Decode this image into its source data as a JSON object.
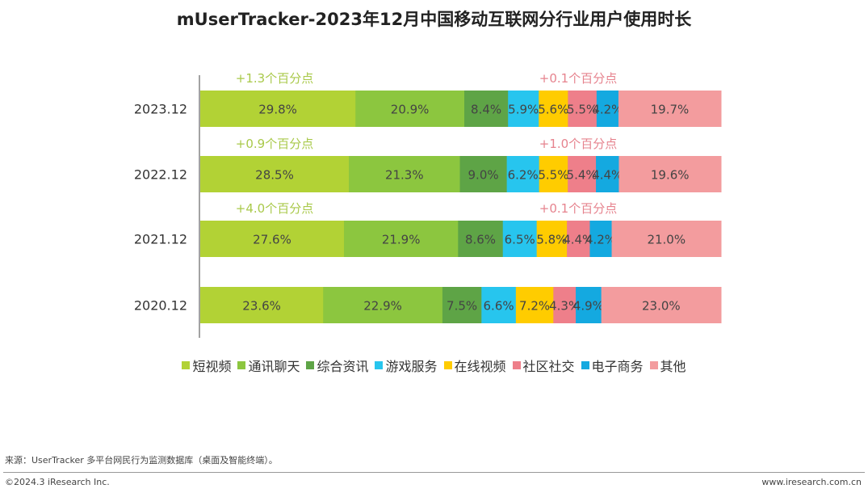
{
  "chart_data": {
    "type": "bar",
    "orientation": "horizontal-stacked-100",
    "title": "mUserTracker-2023年12月中国移动互联网分行业用户使用时长",
    "categories": [
      "2023.12",
      "2022.12",
      "2021.12",
      "2020.12"
    ],
    "series": [
      {
        "name": "短视频",
        "color": "#b2d235",
        "values": [
          29.8,
          28.5,
          27.6,
          23.6
        ]
      },
      {
        "name": "通讯聊天",
        "color": "#8cc63f",
        "values": [
          20.9,
          21.3,
          21.9,
          22.9
        ]
      },
      {
        "name": "综合资讯",
        "color": "#5ea446",
        "values": [
          8.4,
          9.0,
          8.6,
          7.5
        ]
      },
      {
        "name": "游戏服务",
        "color": "#27c5ee",
        "values": [
          5.9,
          6.2,
          6.5,
          6.6
        ]
      },
      {
        "name": "在线视频",
        "color": "#ffcc00",
        "values": [
          5.6,
          5.5,
          5.8,
          7.2
        ]
      },
      {
        "name": "社区社交",
        "color": "#ee7f8a",
        "values": [
          5.5,
          5.4,
          4.4,
          4.3
        ]
      },
      {
        "name": "电子商务",
        "color": "#14a9e0",
        "values": [
          4.2,
          4.4,
          4.2,
          4.9
        ]
      },
      {
        "name": "其他",
        "color": "#f39c9e",
        "values": [
          19.7,
          19.6,
          21.0,
          23.0
        ]
      }
    ],
    "annotations": [
      {
        "category": "2023.12",
        "left": "+1.3个百分点",
        "right": "+0.1个百分点"
      },
      {
        "category": "2022.12",
        "left": "+0.9个百分点",
        "right": "+1.0个百分点"
      },
      {
        "category": "2021.12",
        "left": "+4.0个百分点",
        "right": "+0.1个百分点"
      }
    ],
    "annotation_colors": {
      "left": "#a9c94a",
      "right": "#e6838e"
    },
    "legend": "bottom",
    "grid": false
  },
  "footer": {
    "source": "来源：UserTracker 多平台网民行为监测数据库（桌面及智能终端）。",
    "copyright": "©2024.3 iResearch Inc.",
    "site": "www.iresearch.com.cn"
  }
}
